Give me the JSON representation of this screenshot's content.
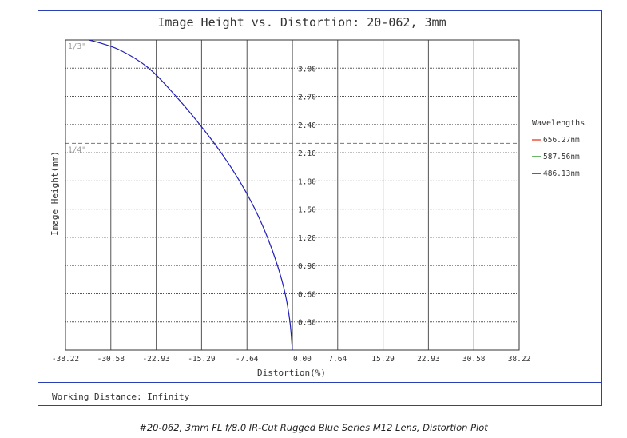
{
  "chart_data": {
    "type": "line",
    "title": "Image Height vs. Distortion: 20-062, 3mm",
    "xlabel": "Distortion(%)",
    "ylabel": "Image Height(mm)",
    "xlim": [
      -38.22,
      38.22
    ],
    "ylim": [
      0,
      3.3
    ],
    "x_ticks": [
      "-38.22",
      "-30.58",
      "-22.93",
      "-15.29",
      "-7.64",
      "0.00",
      "7.64",
      "15.29",
      "22.93",
      "30.58",
      "38.22"
    ],
    "y_ticks": [
      "0.30",
      "0.60",
      "0.90",
      "1.20",
      "1.50",
      "1.80",
      "2.10",
      "2.40",
      "2.70",
      "3.00"
    ],
    "grid": true,
    "legend": {
      "title": "Wavelengths",
      "placement": "right"
    },
    "sensor_lines": [
      {
        "label": "1/3\"",
        "y": 3.3
      },
      {
        "label": "1/4\"",
        "y": 2.2
      }
    ],
    "series": [
      {
        "name": "656.27nm",
        "color": "#e8553c",
        "x": [],
        "y": []
      },
      {
        "name": "587.56nm",
        "color": "#3a9b3a",
        "x": [],
        "y": []
      },
      {
        "name": "486.13nm",
        "color": "#1f1fb8",
        "x": [
          0,
          -0.4,
          -1.2,
          -2.5,
          -4.2,
          -6.3,
          -8.9,
          -12.0,
          -15.6,
          -19.6,
          -24.2,
          -29.3,
          -34.2
        ],
        "y": [
          0,
          0.3,
          0.6,
          0.9,
          1.2,
          1.5,
          1.8,
          2.1,
          2.4,
          2.7,
          3.0,
          3.2,
          3.3
        ]
      }
    ]
  },
  "footer": {
    "working_distance": "Working Distance: Infinity",
    "caption": "#20-062, 3mm FL f/8.0 IR-Cut Rugged Blue Series M12 Lens, Distortion Plot"
  }
}
